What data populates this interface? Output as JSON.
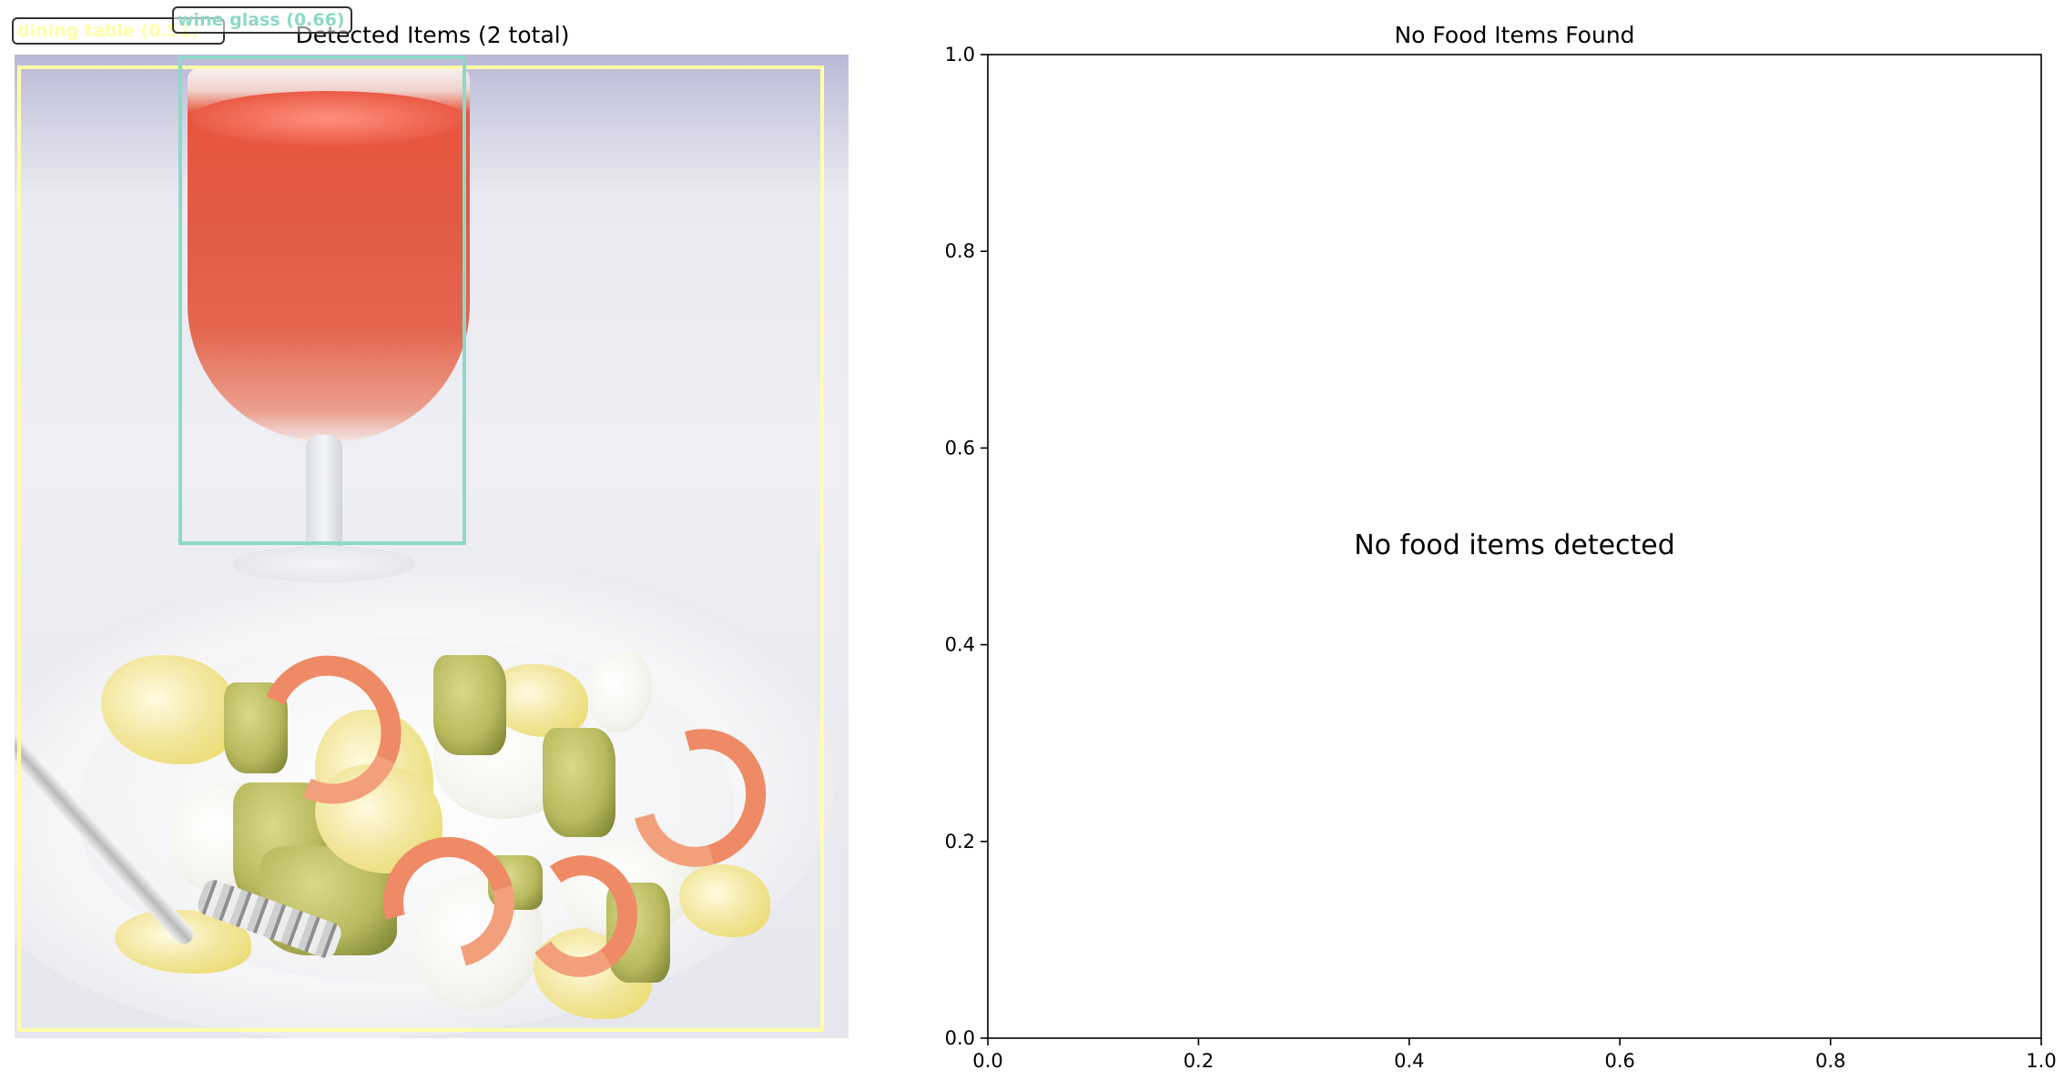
{
  "left_panel": {
    "title": "Detected Items (2 total)",
    "detections": [
      {
        "label": "dining table (0.51)",
        "color": "#ffffa8"
      },
      {
        "label": "wine glass (0.66)",
        "color": "#8ed8c8"
      }
    ]
  },
  "chart_data": {
    "type": "scatter",
    "title": "No Food Items Found",
    "xlabel": "",
    "ylabel": "",
    "xlim": [
      0.0,
      1.0
    ],
    "ylim": [
      0.0,
      1.0
    ],
    "x_ticks": [
      "0.0",
      "0.2",
      "0.4",
      "0.6",
      "0.8",
      "1.0"
    ],
    "y_ticks": [
      "0.0",
      "0.2",
      "0.4",
      "0.6",
      "0.8",
      "1.0"
    ],
    "series": [],
    "annotation": "No food items detected",
    "grid": false
  }
}
